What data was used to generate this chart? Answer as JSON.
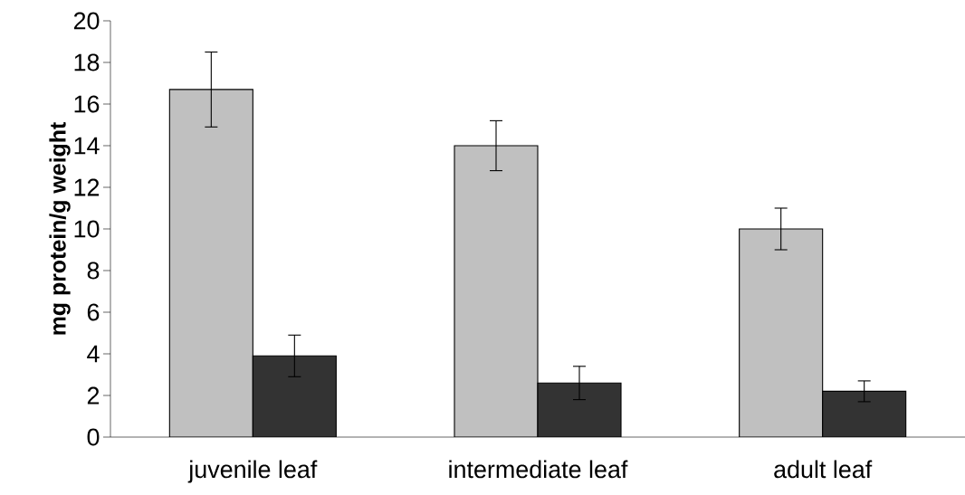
{
  "chart_data": {
    "type": "bar",
    "ylabel": "mg protein/g weight",
    "categories": [
      "juvenile leaf",
      "intermediate leaf",
      "adult leaf"
    ],
    "series": [
      {
        "color": "#c0c0c0",
        "values": [
          16.7,
          14.0,
          10.0
        ],
        "errors": [
          1.8,
          1.2,
          1.0
        ]
      },
      {
        "color": "#333333",
        "values": [
          3.9,
          2.6,
          2.2
        ],
        "errors": [
          1.0,
          0.8,
          0.5
        ]
      }
    ],
    "ylim": [
      0,
      20
    ],
    "yticks": [
      0,
      2,
      4,
      6,
      8,
      10,
      12,
      14,
      16,
      18,
      20
    ],
    "grid": false
  }
}
